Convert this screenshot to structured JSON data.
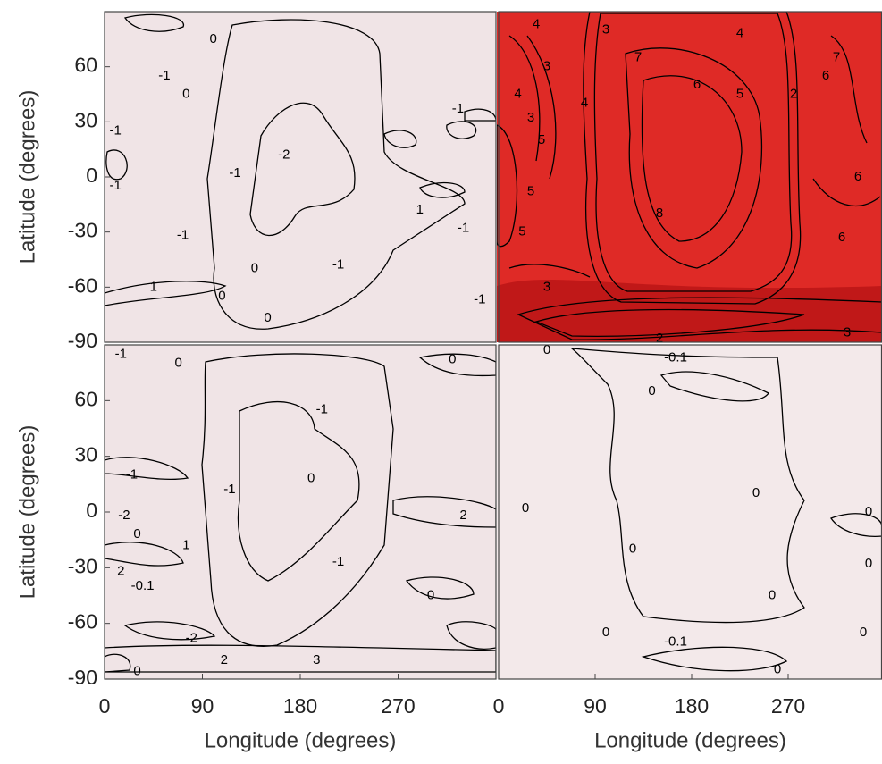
{
  "chart_data": [
    {
      "type": "contour",
      "ylabel": "Latitude (degrees)",
      "xlim": [
        0,
        360
      ],
      "ylim": [
        -90,
        90
      ],
      "yticks": [
        -90,
        -60,
        -30,
        0,
        30,
        60
      ],
      "contour_labels": [
        {
          "value": 0,
          "lon": 100,
          "lat": 75
        },
        {
          "value": -1,
          "lon": 55,
          "lat": 55
        },
        {
          "value": 0,
          "lon": 75,
          "lat": 45
        },
        {
          "value": -1,
          "lon": 10,
          "lat": 25
        },
        {
          "value": -1,
          "lon": 10,
          "lat": -5
        },
        {
          "value": -2,
          "lon": 165,
          "lat": 12
        },
        {
          "value": -1,
          "lon": 120,
          "lat": 2
        },
        {
          "value": -1,
          "lon": 72,
          "lat": -32
        },
        {
          "value": 0,
          "lon": 138,
          "lat": -50
        },
        {
          "value": -1,
          "lon": 215,
          "lat": -48
        },
        {
          "value": 1,
          "lon": 45,
          "lat": -60
        },
        {
          "value": 0,
          "lon": 108,
          "lat": -65
        },
        {
          "value": 0,
          "lon": 150,
          "lat": -77
        },
        {
          "value": -1,
          "lon": 325,
          "lat": 37
        },
        {
          "value": 1,
          "lon": 290,
          "lat": -18
        },
        {
          "value": -1,
          "lon": 330,
          "lat": -28
        },
        {
          "value": -1,
          "lon": 345,
          "lat": -67
        }
      ]
    },
    {
      "type": "contour",
      "xlim": [
        0,
        360
      ],
      "ylim": [
        -90,
        90
      ],
      "contour_labels": [
        {
          "value": 4,
          "lon": 35,
          "lat": 83
        },
        {
          "value": 3,
          "lon": 100,
          "lat": 80
        },
        {
          "value": 3,
          "lon": 45,
          "lat": 60
        },
        {
          "value": 4,
          "lon": 18,
          "lat": 45
        },
        {
          "value": 3,
          "lon": 30,
          "lat": 32
        },
        {
          "value": 5,
          "lon": 40,
          "lat": 20
        },
        {
          "value": 4,
          "lon": 80,
          "lat": 40
        },
        {
          "value": 7,
          "lon": 130,
          "lat": 65
        },
        {
          "value": 6,
          "lon": 185,
          "lat": 50
        },
        {
          "value": 5,
          "lon": 225,
          "lat": 45
        },
        {
          "value": 4,
          "lon": 225,
          "lat": 78
        },
        {
          "value": 7,
          "lon": 315,
          "lat": 65
        },
        {
          "value": 6,
          "lon": 305,
          "lat": 55
        },
        {
          "value": 2,
          "lon": 275,
          "lat": 45
        },
        {
          "value": 5,
          "lon": 30,
          "lat": -8
        },
        {
          "value": 5,
          "lon": 22,
          "lat": -30
        },
        {
          "value": 8,
          "lon": 150,
          "lat": -20
        },
        {
          "value": 6,
          "lon": 335,
          "lat": 0
        },
        {
          "value": 6,
          "lon": 320,
          "lat": -33
        },
        {
          "value": 3,
          "lon": 45,
          "lat": -60
        },
        {
          "value": 2,
          "lon": 150,
          "lat": -88
        },
        {
          "value": 3,
          "lon": 325,
          "lat": -85
        }
      ]
    },
    {
      "type": "contour",
      "ylabel": "Latitude (degrees)",
      "xlabel": "Longitude (degrees)",
      "xlim": [
        0,
        360
      ],
      "ylim": [
        -90,
        90
      ],
      "xticks": [
        0,
        90,
        180,
        270
      ],
      "yticks": [
        -90,
        -60,
        -30,
        0,
        30,
        60
      ],
      "contour_labels": [
        {
          "value": -1,
          "lon": 15,
          "lat": 85
        },
        {
          "value": 0,
          "lon": 68,
          "lat": 80
        },
        {
          "value": -1,
          "lon": 200,
          "lat": 55
        },
        {
          "value": 0,
          "lon": 320,
          "lat": 82
        },
        {
          "value": -1,
          "lon": 25,
          "lat": 20
        },
        {
          "value": -2,
          "lon": 18,
          "lat": -2
        },
        {
          "value": 0,
          "lon": 30,
          "lat": -12
        },
        {
          "value": 1,
          "lon": 75,
          "lat": -18
        },
        {
          "value": 2,
          "lon": 15,
          "lat": -32
        },
        {
          "value": -1,
          "lon": 115,
          "lat": 12
        },
        {
          "value": 0,
          "lon": 190,
          "lat": 18
        },
        {
          "value": -1,
          "lon": 215,
          "lat": -27
        },
        {
          "value": 2,
          "lon": 330,
          "lat": -2
        },
        {
          "value": 0,
          "lon": 300,
          "lat": -45
        },
        {
          "value": -0.1,
          "lon": 35,
          "lat": -40
        },
        {
          "value": -2,
          "lon": 80,
          "lat": -68
        },
        {
          "value": 2,
          "lon": 110,
          "lat": -80
        },
        {
          "value": 3,
          "lon": 195,
          "lat": -80
        },
        {
          "value": 0,
          "lon": 30,
          "lat": -86
        }
      ]
    },
    {
      "type": "contour",
      "xlabel": "Longitude (degrees)",
      "xlim": [
        0,
        360
      ],
      "ylim": [
        -90,
        90
      ],
      "xticks": [
        0,
        90,
        180,
        270
      ],
      "contour_labels": [
        {
          "value": 0,
          "lon": 45,
          "lat": 87
        },
        {
          "value": -0.1,
          "lon": 165,
          "lat": 83
        },
        {
          "value": 0,
          "lon": 143,
          "lat": 65
        },
        {
          "value": 0,
          "lon": 25,
          "lat": 2
        },
        {
          "value": 0,
          "lon": 240,
          "lat": 10
        },
        {
          "value": 0,
          "lon": 125,
          "lat": -20
        },
        {
          "value": 0,
          "lon": 255,
          "lat": -45
        },
        {
          "value": 0,
          "lon": 345,
          "lat": 0
        },
        {
          "value": 0,
          "lon": 345,
          "lat": -28
        },
        {
          "value": 0,
          "lon": 100,
          "lat": -65
        },
        {
          "value": -0.1,
          "lon": 165,
          "lat": -70
        },
        {
          "value": 0,
          "lon": 340,
          "lat": -65
        },
        {
          "value": 0,
          "lon": 260,
          "lat": -85
        }
      ]
    }
  ]
}
